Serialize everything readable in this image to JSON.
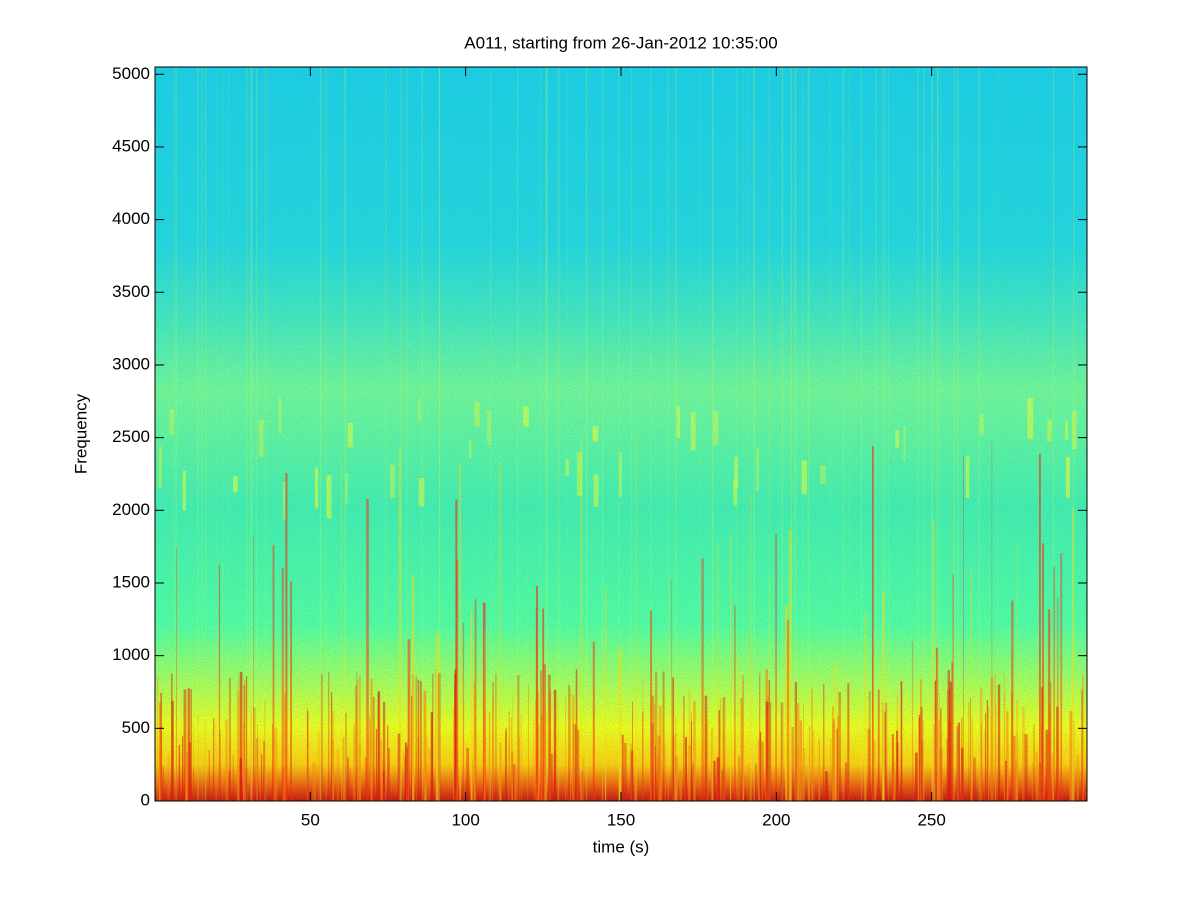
{
  "chart_data": {
    "type": "spectrogram",
    "title": "A011, starting from 26-Jan-2012 10:35:00",
    "xlabel": "time (s)",
    "ylabel": "Frequency",
    "colormap": "jet",
    "xlim": [
      0,
      300
    ],
    "xticks": [
      50,
      100,
      150,
      200,
      250
    ],
    "ylim": [
      0,
      5050
    ],
    "yticks": [
      0,
      500,
      1000,
      1500,
      2000,
      2500,
      3000,
      3500,
      4000,
      4500,
      5000
    ]
  }
}
